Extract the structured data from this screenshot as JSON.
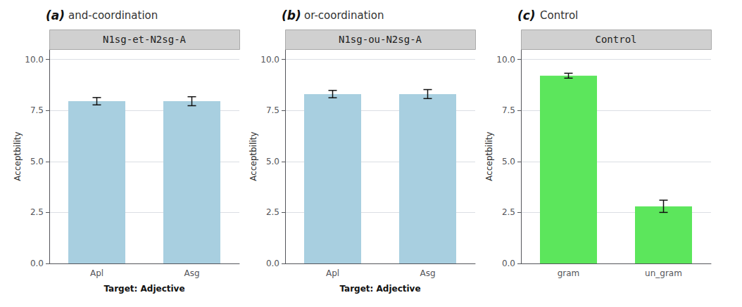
{
  "chart_data": [
    {
      "type": "bar",
      "title": "and-coordination",
      "subtitle": "N1sg-et-N2sg-A",
      "annotations": [
        "(a)"
      ],
      "categories": [
        "Apl",
        "Asg"
      ],
      "values": [
        7.95,
        7.95
      ],
      "errors": [
        0.18,
        0.22
      ],
      "color": "#a8cfe0",
      "xlabel": "Target: Adjective",
      "ylabel": "Acceptbility",
      "ylim": [
        0,
        10.5
      ],
      "yticks": [
        {
          "value": 0,
          "label": "0.0"
        },
        2.5,
        {
          "value": 5,
          "label": "5.0"
        },
        7.5,
        {
          "value": 10,
          "label": "10.0"
        }
      ],
      "grid": true
    },
    {
      "type": "bar",
      "title": "or-coordination",
      "subtitle": "N1sg-ou-N2sg-A",
      "annotations": [
        "(b)"
      ],
      "categories": [
        "Apl",
        "Asg"
      ],
      "values": [
        8.3,
        8.3
      ],
      "errors": [
        0.18,
        0.22
      ],
      "color": "#a8cfe0",
      "xlabel": "Target: Adjective",
      "ylabel": "Acceptbility",
      "ylim": [
        0,
        10.5
      ],
      "yticks": [
        {
          "value": 0,
          "label": "0.0"
        },
        2.5,
        {
          "value": 5,
          "label": "5.0"
        },
        7.5,
        {
          "value": 10,
          "label": "10.0"
        }
      ],
      "grid": true
    },
    {
      "type": "bar",
      "title": "Control",
      "subtitle": "Control",
      "annotations": [
        "(c)"
      ],
      "categories": [
        "gram",
        "un_gram"
      ],
      "values": [
        9.2,
        2.8
      ],
      "errors": [
        0.12,
        0.3
      ],
      "color": "#5ce65c",
      "ylabel": "Acceptbility",
      "ylim": [
        0,
        10.5
      ],
      "yticks": [
        {
          "value": 0,
          "label": "0.0"
        },
        2.5,
        {
          "value": 5,
          "label": "5.0"
        },
        7.5,
        {
          "value": 10,
          "label": "10.0"
        }
      ],
      "grid": true
    }
  ]
}
